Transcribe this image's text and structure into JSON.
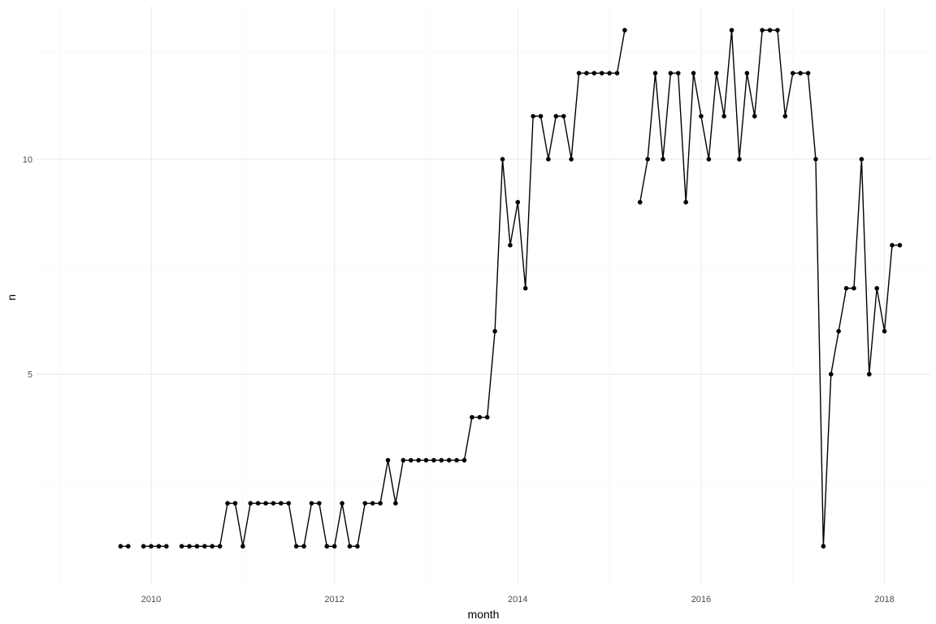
{
  "chart_data": {
    "type": "line",
    "title": "",
    "xlabel": "month",
    "ylabel": "n",
    "x_axis": "date",
    "xlim": [
      "2008-10-01",
      "2018-07-01"
    ],
    "ylim": [
      0.1,
      13.55
    ],
    "x_ticks": [
      "2010",
      "2012",
      "2014",
      "2016",
      "2018"
    ],
    "y_ticks": [
      "5",
      "10"
    ],
    "grid": true,
    "colors": {
      "line": "#000000",
      "point": "#000000",
      "grid_major": "#ebebeb",
      "grid_minor": "#f4f4f4",
      "background": "#ffffff"
    },
    "series": [
      {
        "segments": [
          {
            "x": [
              "2009-09",
              "2009-10"
            ],
            "y": [
              1,
              1
            ]
          },
          {
            "x": [
              "2009-12",
              "2010-01",
              "2010-02",
              "2010-03"
            ],
            "y": [
              1,
              1,
              1,
              1
            ]
          },
          {
            "x": [
              "2010-05",
              "2010-06",
              "2010-07",
              "2010-08",
              "2010-09",
              "2010-10",
              "2010-11",
              "2010-12",
              "2011-01",
              "2011-02",
              "2011-03",
              "2011-04",
              "2011-05",
              "2011-06",
              "2011-07",
              "2011-08",
              "2011-09",
              "2011-10",
              "2011-11",
              "2011-12",
              "2012-01",
              "2012-02",
              "2012-03",
              "2012-04",
              "2012-05",
              "2012-06",
              "2012-07",
              "2012-08",
              "2012-09",
              "2012-10",
              "2012-11",
              "2012-12",
              "2013-01",
              "2013-02",
              "2013-03",
              "2013-04",
              "2013-05",
              "2013-06",
              "2013-07",
              "2013-08",
              "2013-09",
              "2013-10",
              "2013-11",
              "2013-12",
              "2014-01",
              "2014-02",
              "2014-03",
              "2014-04",
              "2014-05",
              "2014-06",
              "2014-07",
              "2014-08",
              "2014-09",
              "2014-10",
              "2014-11",
              "2014-12",
              "2015-01",
              "2015-02",
              "2015-03"
            ],
            "y": [
              1,
              1,
              1,
              1,
              1,
              1,
              2,
              2,
              1,
              2,
              2,
              2,
              2,
              2,
              2,
              1,
              1,
              2,
              2,
              1,
              1,
              2,
              1,
              1,
              2,
              2,
              2,
              3,
              2,
              3,
              3,
              3,
              3,
              3,
              3,
              3,
              3,
              3,
              4,
              4,
              4,
              6,
              10,
              8,
              9,
              7,
              11,
              11,
              10,
              11,
              11,
              10,
              12,
              12,
              12,
              12,
              12,
              12,
              13
            ]
          },
          {
            "x": [
              "2015-05",
              "2015-06",
              "2015-07",
              "2015-08",
              "2015-09",
              "2015-10",
              "2015-11",
              "2015-12",
              "2016-01",
              "2016-02",
              "2016-03",
              "2016-04",
              "2016-05",
              "2016-06",
              "2016-07",
              "2016-08",
              "2016-09",
              "2016-10",
              "2016-11",
              "2016-12",
              "2017-01",
              "2017-02",
              "2017-03",
              "2017-04",
              "2017-05",
              "2017-06",
              "2017-07",
              "2017-08",
              "2017-09",
              "2017-10",
              "2017-11",
              "2017-12",
              "2018-01",
              "2018-02",
              "2018-03"
            ],
            "y": [
              9,
              10,
              12,
              10,
              12,
              12,
              9,
              12,
              11,
              10,
              12,
              11,
              13,
              10,
              12,
              11,
              13,
              13,
              13,
              11,
              12,
              12,
              12,
              10,
              1,
              5,
              6,
              7,
              7,
              10,
              5,
              7,
              6,
              8,
              8
            ]
          }
        ]
      }
    ]
  }
}
